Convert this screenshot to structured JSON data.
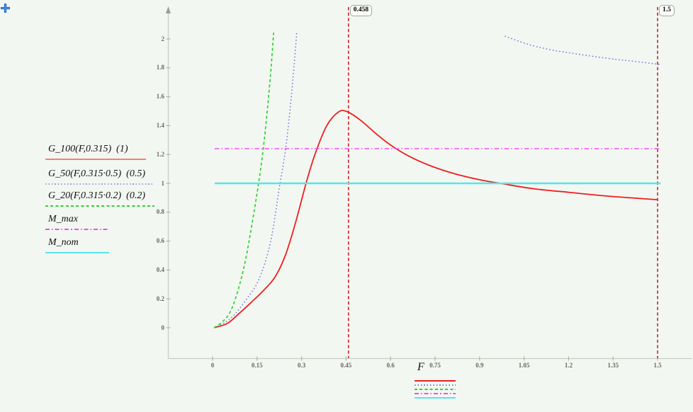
{
  "icons": {
    "insertion_cursor": "plus-crosshair"
  },
  "chart_data": {
    "type": "line",
    "title": "",
    "xlabel": "F",
    "ylabel": "",
    "grid": false,
    "legend_position": "left",
    "xlim": [
      -0.15,
      1.62
    ],
    "ylim": [
      -0.21,
      2.25
    ],
    "x_ticks": [
      0,
      0.15,
      0.3,
      0.45,
      0.6,
      0.75,
      0.9,
      1.05,
      1.2,
      1.35,
      1.5
    ],
    "y_ticks": [
      0,
      0.2,
      0.4,
      0.6,
      0.8,
      1,
      1.2,
      1.4,
      1.6,
      1.8,
      2
    ],
    "markers": [
      {
        "label": "0.458",
        "value": 0.458
      },
      {
        "label": "1.5",
        "value": 1.5
      }
    ],
    "series": [
      {
        "name": "G_100(F,0.315)  (1)",
        "style": "solid",
        "color": "#ee1f1f",
        "legend_color": "#f28078",
        "segments": [
          [
            [
              0.005,
              0
            ],
            [
              0.05,
              0.03
            ],
            [
              0.09,
              0.1
            ],
            [
              0.13,
              0.175
            ],
            [
              0.17,
              0.255
            ],
            [
              0.21,
              0.35
            ],
            [
              0.245,
              0.5
            ],
            [
              0.28,
              0.73
            ],
            [
              0.315,
              1.0
            ],
            [
              0.345,
              1.2
            ],
            [
              0.385,
              1.4
            ],
            [
              0.425,
              1.495
            ],
            [
              0.455,
              1.495
            ],
            [
              0.5,
              1.435
            ],
            [
              0.55,
              1.345
            ],
            [
              0.6,
              1.265
            ],
            [
              0.66,
              1.19
            ],
            [
              0.73,
              1.125
            ],
            [
              0.81,
              1.07
            ],
            [
              0.9,
              1.025
            ],
            [
              0.97,
              1.0
            ],
            [
              1.08,
              0.963
            ],
            [
              1.2,
              0.938
            ],
            [
              1.33,
              0.912
            ],
            [
              1.43,
              0.897
            ],
            [
              1.5,
              0.887
            ]
          ]
        ]
      },
      {
        "name": "G_50(F,0.315·0.5)  (0.5)",
        "style": "dotted",
        "color": "#8080dc",
        "legend_color": "#9b9be2",
        "segments": [
          [
            [
              0.005,
              0
            ],
            [
              0.045,
              0.04
            ],
            [
              0.08,
              0.105
            ],
            [
              0.115,
              0.2
            ],
            [
              0.148,
              0.3
            ],
            [
              0.175,
              0.44
            ],
            [
              0.2,
              0.64
            ],
            [
              0.225,
              0.97
            ],
            [
              0.245,
              1.22
            ],
            [
              0.262,
              1.53
            ],
            [
              0.275,
              1.82
            ],
            [
              0.285,
              2.08
            ]
          ],
          [
            [
              0.985,
              2.02
            ],
            [
              1.06,
              1.965
            ],
            [
              1.14,
              1.925
            ],
            [
              1.23,
              1.895
            ],
            [
              1.33,
              1.866
            ],
            [
              1.42,
              1.845
            ],
            [
              1.507,
              1.824
            ]
          ]
        ]
      },
      {
        "name": "G_20(F,0.315·0.2)  (0.2)",
        "style": "dashed",
        "color": "#2fd32f",
        "legend_color": "#2fd32f",
        "segments": [
          [
            [
              0.005,
              0
            ],
            [
              0.035,
              0.045
            ],
            [
              0.062,
              0.12
            ],
            [
              0.09,
              0.29
            ],
            [
              0.112,
              0.48
            ],
            [
              0.133,
              0.72
            ],
            [
              0.155,
              1.0
            ],
            [
              0.172,
              1.26
            ],
            [
              0.185,
              1.52
            ],
            [
              0.198,
              1.82
            ],
            [
              0.207,
              2.08
            ]
          ]
        ]
      },
      {
        "name": "M_max",
        "style": "dashdot",
        "color": "#f14ef1",
        "legend_color": "#f14ef1",
        "value": 1.24,
        "segments": [
          [
            [
              0.007,
              1.24
            ],
            [
              1.51,
              1.24
            ]
          ]
        ]
      },
      {
        "name": "M_nom",
        "style": "solid",
        "color": "#55e6ea",
        "legend_color": "#55e6ea",
        "value": 1.0,
        "segments": [
          [
            [
              0.007,
              1.0
            ],
            [
              1.51,
              1.0
            ]
          ]
        ]
      }
    ]
  }
}
